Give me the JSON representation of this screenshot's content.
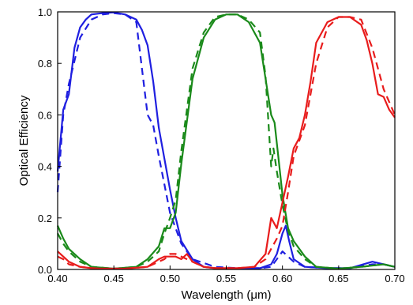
{
  "chart_data": {
    "type": "line",
    "title": "",
    "xlabel": "Wavelength (μm)",
    "ylabel": "Optical Efficiency",
    "xlim": [
      0.4,
      0.7
    ],
    "ylim": [
      0.0,
      1.0
    ],
    "xticks": [
      "0.40",
      "0.45",
      "0.50",
      "0.55",
      "0.60",
      "0.65",
      "0.70"
    ],
    "yticks": [
      "0.0",
      "0.2",
      "0.4",
      "0.6",
      "0.8",
      "1.0"
    ],
    "grid": false,
    "legend": "none",
    "series": [
      {
        "color": "#1f1fe0",
        "style": "solid",
        "x": [
          0.4,
          0.405,
          0.41,
          0.415,
          0.42,
          0.425,
          0.43,
          0.44,
          0.45,
          0.46,
          0.47,
          0.475,
          0.48,
          0.485,
          0.49,
          0.495,
          0.5,
          0.505,
          0.51,
          0.52,
          0.53,
          0.54,
          0.56,
          0.58,
          0.59,
          0.595,
          0.6,
          0.603,
          0.606,
          0.61,
          0.62,
          0.64,
          0.66,
          0.68,
          0.69,
          0.7
        ],
        "y": [
          0.38,
          0.62,
          0.68,
          0.86,
          0.94,
          0.97,
          0.99,
          0.995,
          0.998,
          0.99,
          0.97,
          0.93,
          0.87,
          0.73,
          0.55,
          0.43,
          0.31,
          0.2,
          0.11,
          0.04,
          0.01,
          0.005,
          0.003,
          0.005,
          0.02,
          0.06,
          0.14,
          0.17,
          0.11,
          0.04,
          0.01,
          0.005,
          0.005,
          0.03,
          0.02,
          0.01
        ]
      },
      {
        "color": "#1f1fe0",
        "style": "dashed",
        "x": [
          0.4,
          0.405,
          0.41,
          0.42,
          0.43,
          0.44,
          0.45,
          0.46,
          0.47,
          0.48,
          0.485,
          0.49,
          0.495,
          0.5,
          0.51,
          0.52,
          0.54,
          0.56,
          0.58,
          0.59,
          0.595,
          0.6,
          0.605,
          0.61,
          0.62,
          0.64,
          0.66,
          0.68,
          0.69,
          0.7
        ],
        "y": [
          0.3,
          0.6,
          0.72,
          0.9,
          0.97,
          0.99,
          0.995,
          0.99,
          0.96,
          0.6,
          0.56,
          0.44,
          0.33,
          0.22,
          0.1,
          0.04,
          0.01,
          0.005,
          0.005,
          0.01,
          0.04,
          0.07,
          0.05,
          0.03,
          0.01,
          0.005,
          0.005,
          0.02,
          0.02,
          0.01
        ]
      },
      {
        "color": "#1a8a1a",
        "style": "solid",
        "x": [
          0.4,
          0.405,
          0.41,
          0.42,
          0.43,
          0.45,
          0.47,
          0.48,
          0.49,
          0.495,
          0.5,
          0.505,
          0.51,
          0.52,
          0.53,
          0.54,
          0.55,
          0.56,
          0.57,
          0.58,
          0.59,
          0.593,
          0.596,
          0.6,
          0.605,
          0.61,
          0.62,
          0.63,
          0.65,
          0.67,
          0.69,
          0.7
        ],
        "y": [
          0.17,
          0.12,
          0.08,
          0.04,
          0.01,
          0.003,
          0.01,
          0.04,
          0.09,
          0.16,
          0.16,
          0.22,
          0.41,
          0.74,
          0.9,
          0.97,
          0.99,
          0.99,
          0.96,
          0.88,
          0.6,
          0.57,
          0.45,
          0.29,
          0.16,
          0.11,
          0.05,
          0.01,
          0.003,
          0.01,
          0.02,
          0.01
        ]
      },
      {
        "color": "#1a8a1a",
        "style": "dashed",
        "x": [
          0.4,
          0.405,
          0.41,
          0.42,
          0.43,
          0.45,
          0.47,
          0.48,
          0.49,
          0.495,
          0.5,
          0.505,
          0.51,
          0.52,
          0.53,
          0.54,
          0.55,
          0.56,
          0.57,
          0.58,
          0.585,
          0.59,
          0.592,
          0.595,
          0.6,
          0.605,
          0.61,
          0.62,
          0.63,
          0.65,
          0.67,
          0.69,
          0.7
        ],
        "y": [
          0.14,
          0.1,
          0.07,
          0.03,
          0.01,
          0.003,
          0.01,
          0.03,
          0.07,
          0.14,
          0.2,
          0.27,
          0.46,
          0.78,
          0.92,
          0.98,
          0.99,
          0.99,
          0.97,
          0.92,
          0.75,
          0.4,
          0.47,
          0.38,
          0.25,
          0.15,
          0.09,
          0.04,
          0.01,
          0.003,
          0.01,
          0.02,
          0.01
        ]
      },
      {
        "color": "#e81c1c",
        "style": "solid",
        "x": [
          0.4,
          0.405,
          0.41,
          0.42,
          0.43,
          0.44,
          0.46,
          0.48,
          0.49,
          0.495,
          0.5,
          0.505,
          0.51,
          0.515,
          0.52,
          0.53,
          0.54,
          0.56,
          0.575,
          0.585,
          0.59,
          0.595,
          0.6,
          0.605,
          0.61,
          0.615,
          0.62,
          0.625,
          0.63,
          0.64,
          0.65,
          0.66,
          0.67,
          0.675,
          0.68,
          0.685,
          0.69,
          0.695,
          0.7
        ],
        "y": [
          0.07,
          0.05,
          0.03,
          0.01,
          0.005,
          0.003,
          0.003,
          0.01,
          0.04,
          0.05,
          0.05,
          0.05,
          0.04,
          0.06,
          0.03,
          0.01,
          0.005,
          0.005,
          0.01,
          0.06,
          0.2,
          0.16,
          0.26,
          0.36,
          0.47,
          0.51,
          0.6,
          0.73,
          0.88,
          0.96,
          0.98,
          0.98,
          0.95,
          0.89,
          0.8,
          0.68,
          0.67,
          0.62,
          0.59
        ]
      },
      {
        "color": "#e81c1c",
        "style": "dashed",
        "x": [
          0.4,
          0.405,
          0.41,
          0.42,
          0.43,
          0.44,
          0.46,
          0.48,
          0.49,
          0.495,
          0.5,
          0.505,
          0.51,
          0.52,
          0.53,
          0.54,
          0.56,
          0.575,
          0.585,
          0.59,
          0.595,
          0.6,
          0.605,
          0.61,
          0.62,
          0.63,
          0.64,
          0.65,
          0.66,
          0.67,
          0.68,
          0.69,
          0.7
        ],
        "y": [
          0.05,
          0.04,
          0.02,
          0.01,
          0.005,
          0.003,
          0.003,
          0.01,
          0.03,
          0.04,
          0.06,
          0.06,
          0.05,
          0.03,
          0.01,
          0.005,
          0.005,
          0.01,
          0.04,
          0.08,
          0.12,
          0.17,
          0.3,
          0.44,
          0.56,
          0.8,
          0.94,
          0.98,
          0.98,
          0.97,
          0.86,
          0.7,
          0.6
        ]
      }
    ]
  }
}
